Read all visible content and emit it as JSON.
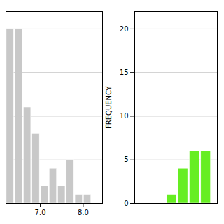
{
  "chart_data": [
    {
      "type": "bar",
      "x": [
        6.3,
        6.5,
        6.7,
        6.9,
        7.1,
        7.3,
        7.5,
        7.7,
        7.9,
        8.1,
        8.3
      ],
      "values": [
        20,
        20,
        11,
        8,
        2,
        4,
        2,
        5,
        1,
        1,
        0
      ],
      "color": "#c8c8c8",
      "xlim": [
        6.2,
        8.45
      ],
      "xticks": [
        7,
        8
      ],
      "ylim": [
        0,
        22
      ],
      "yticks": [
        5,
        10,
        15,
        20
      ],
      "grid": true,
      "tick_labels": "x"
    },
    {
      "type": "bar",
      "x": [
        4.3,
        4.5,
        4.7,
        4.9,
        5.1,
        5.3
      ],
      "values": [
        0,
        0,
        1,
        4,
        6,
        6
      ],
      "color": "#66ee22",
      "xlim": [
        4.05,
        5.5
      ],
      "ylim": [
        0,
        22
      ],
      "yticks": [
        0,
        5,
        10,
        15,
        20
      ],
      "ylabel": "FREQUENCY",
      "grid": true,
      "tick_labels": "y"
    }
  ]
}
